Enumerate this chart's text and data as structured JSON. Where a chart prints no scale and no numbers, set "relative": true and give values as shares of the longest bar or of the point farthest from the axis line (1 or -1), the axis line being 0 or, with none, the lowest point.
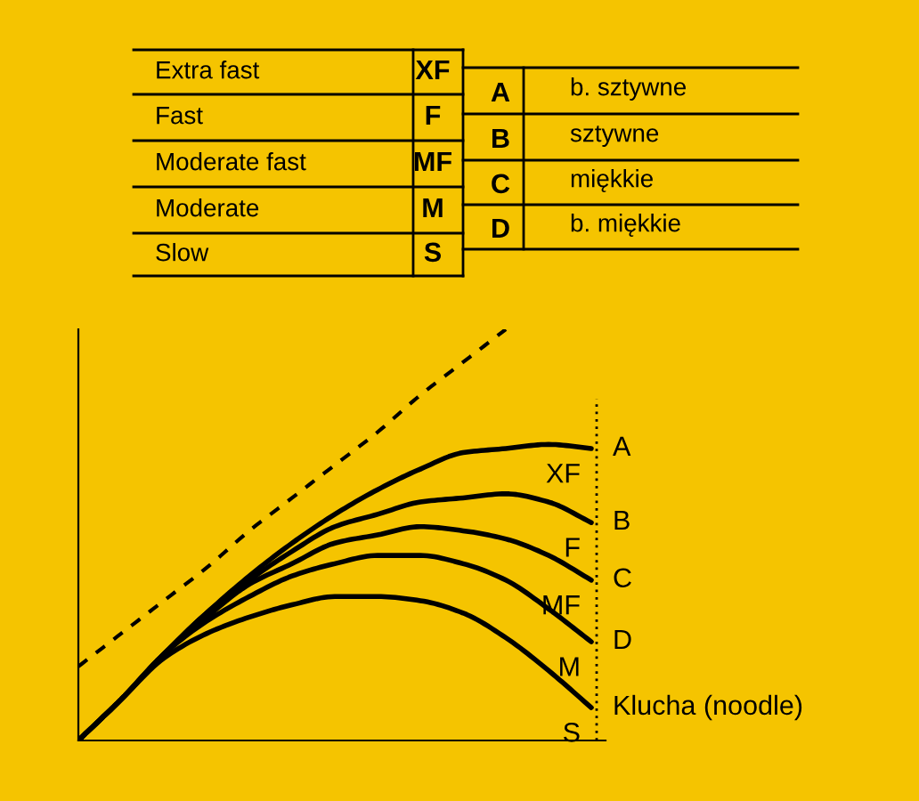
{
  "chart_data": {
    "type": "line",
    "relative": true,
    "grid": false,
    "legend": false,
    "marker": "none",
    "categories": [
      null,
      null,
      null,
      null,
      null,
      null,
      null,
      null,
      null,
      null,
      null,
      null,
      null
    ],
    "series": [
      {
        "name": "XF",
        "color": "#000000",
        "line_style": "solid",
        "values": [
          0,
          0.1,
          0.21,
          0.31,
          0.4,
          0.48,
          0.55,
          0.61,
          0.66,
          0.7,
          0.71,
          0.72,
          0.71
        ]
      },
      {
        "name": "F",
        "color": "#000000",
        "line_style": "solid",
        "values": [
          0,
          0.1,
          0.21,
          0.31,
          0.39,
          0.46,
          0.52,
          0.55,
          0.58,
          0.59,
          0.6,
          0.58,
          0.53
        ]
      },
      {
        "name": "MF",
        "color": "#000000",
        "line_style": "solid",
        "values": [
          0,
          0.1,
          0.21,
          0.3,
          0.38,
          0.43,
          0.48,
          0.5,
          0.52,
          0.51,
          0.49,
          0.45,
          0.39
        ]
      },
      {
        "name": "M",
        "color": "#000000",
        "line_style": "solid",
        "values": [
          0,
          0.1,
          0.21,
          0.29,
          0.35,
          0.4,
          0.43,
          0.45,
          0.45,
          0.43,
          0.39,
          0.32,
          0.24
        ]
      },
      {
        "name": "S",
        "color": "#000000",
        "line_style": "solid",
        "values": [
          0,
          0.1,
          0.2,
          0.26,
          0.3,
          0.33,
          0.35,
          0.35,
          0.34,
          0.31,
          0.25,
          0.17,
          0.08
        ]
      },
      {
        "color": "#000000",
        "line_style": "dashed",
        "values": [
          0.18,
          0.26,
          0.34,
          0.42,
          0.51,
          0.59,
          0.67,
          0.75,
          0.84,
          0.92,
          1.0,
          null,
          null
        ]
      }
    ],
    "ref_lines": [
      {
        "axis": "x",
        "line_style": "dotted",
        "color": "#000000"
      }
    ],
    "annotations": [
      "Extra fast",
      "XF",
      "Fast",
      "F",
      "Moderate fast",
      "MF",
      "Moderate",
      "M",
      "Slow",
      "S",
      "A",
      "b. sztywne",
      "B",
      "sztywne",
      "C",
      "miękkie",
      "D",
      "b. miękkie",
      "A",
      "B",
      "C",
      "D",
      "Klucha (noodle)"
    ]
  }
}
